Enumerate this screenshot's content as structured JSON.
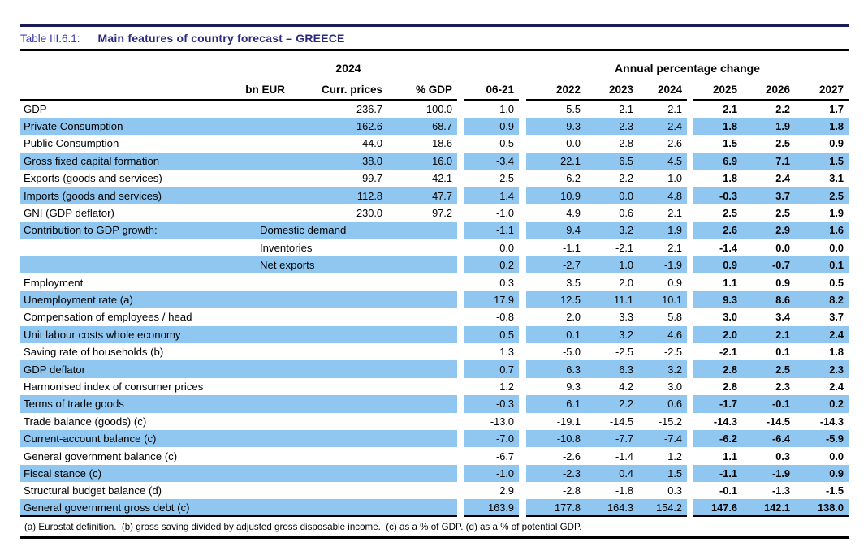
{
  "title": {
    "prefix": "Table III.6.1:",
    "main": "Main features of country forecast – GREECE"
  },
  "header": {
    "group_2024": "2024",
    "group_annual": "Annual percentage change",
    "columns": [
      "bn EUR",
      "Curr. prices",
      "% GDP",
      "06-21",
      "2022",
      "2023",
      "2024",
      "2025",
      "2026",
      "2027"
    ]
  },
  "table": {
    "rows": [
      {
        "label": "GDP",
        "sublabel": "",
        "shaded": false,
        "values": [
          "236.7",
          "100.0",
          "-1.0",
          "5.5",
          "2.1",
          "2.1",
          "2.1",
          "2.2",
          "1.7"
        ]
      },
      {
        "label": "Private Consumption",
        "sublabel": "",
        "shaded": true,
        "values": [
          "162.6",
          "68.7",
          "-0.9",
          "9.3",
          "2.3",
          "2.4",
          "1.8",
          "1.9",
          "1.8"
        ]
      },
      {
        "label": "Public Consumption",
        "sublabel": "",
        "shaded": false,
        "values": [
          "44.0",
          "18.6",
          "-0.5",
          "0.0",
          "2.8",
          "-2.6",
          "1.5",
          "2.5",
          "0.9"
        ]
      },
      {
        "label": "Gross fixed capital formation",
        "sublabel": "",
        "shaded": true,
        "values": [
          "38.0",
          "16.0",
          "-3.4",
          "22.1",
          "6.5",
          "4.5",
          "6.9",
          "7.1",
          "1.5"
        ]
      },
      {
        "label": "Exports (goods and services)",
        "sublabel": "",
        "shaded": false,
        "values": [
          "99.7",
          "42.1",
          "2.5",
          "6.2",
          "2.2",
          "1.0",
          "1.8",
          "2.4",
          "3.1"
        ]
      },
      {
        "label": "Imports (goods and services)",
        "sublabel": "",
        "shaded": true,
        "values": [
          "112.8",
          "47.7",
          "1.4",
          "10.9",
          "0.0",
          "4.8",
          "-0.3",
          "3.7",
          "2.5"
        ]
      },
      {
        "label": "GNI (GDP deflator)",
        "sublabel": "",
        "shaded": false,
        "values": [
          "230.0",
          "97.2",
          "-1.0",
          "4.9",
          "0.6",
          "2.1",
          "2.5",
          "2.5",
          "1.9"
        ]
      },
      {
        "label": "Contribution to GDP growth:",
        "sublabel": "Domestic demand",
        "shaded": true,
        "values": [
          "",
          "",
          "-1.1",
          "9.4",
          "3.2",
          "1.9",
          "2.6",
          "2.9",
          "1.6"
        ]
      },
      {
        "label": "",
        "sublabel": "Inventories",
        "shaded": false,
        "values": [
          "",
          "",
          "0.0",
          "-1.1",
          "-2.1",
          "2.1",
          "-1.4",
          "0.0",
          "0.0"
        ]
      },
      {
        "label": "",
        "sublabel": "Net exports",
        "shaded": true,
        "values": [
          "",
          "",
          "0.2",
          "-2.7",
          "1.0",
          "-1.9",
          "0.9",
          "-0.7",
          "0.1"
        ]
      },
      {
        "label": "Employment",
        "sublabel": "",
        "shaded": false,
        "values": [
          "",
          "",
          "0.3",
          "3.5",
          "2.0",
          "0.9",
          "1.1",
          "0.9",
          "0.5"
        ]
      },
      {
        "label": "Unemployment rate (a)",
        "sublabel": "",
        "shaded": true,
        "values": [
          "",
          "",
          "17.9",
          "12.5",
          "11.1",
          "10.1",
          "9.3",
          "8.6",
          "8.2"
        ]
      },
      {
        "label": "Compensation of employees / head",
        "sublabel": "",
        "shaded": false,
        "values": [
          "",
          "",
          "-0.8",
          "2.0",
          "3.3",
          "5.8",
          "3.0",
          "3.4",
          "3.7"
        ]
      },
      {
        "label": "Unit labour costs whole economy",
        "sublabel": "",
        "shaded": true,
        "values": [
          "",
          "",
          "0.5",
          "0.1",
          "3.2",
          "4.6",
          "2.0",
          "2.1",
          "2.4"
        ]
      },
      {
        "label": "Saving rate of households (b)",
        "sublabel": "",
        "shaded": false,
        "values": [
          "",
          "",
          "1.3",
          "-5.0",
          "-2.5",
          "-2.5",
          "-2.1",
          "0.1",
          "1.8"
        ]
      },
      {
        "label": "GDP deflator",
        "sublabel": "",
        "shaded": true,
        "values": [
          "",
          "",
          "0.7",
          "6.3",
          "6.3",
          "3.2",
          "2.8",
          "2.5",
          "2.3"
        ]
      },
      {
        "label": "Harmonised index of consumer prices",
        "sublabel": "",
        "shaded": false,
        "values": [
          "",
          "",
          "1.2",
          "9.3",
          "4.2",
          "3.0",
          "2.8",
          "2.3",
          "2.4"
        ]
      },
      {
        "label": "Terms of trade goods",
        "sublabel": "",
        "shaded": true,
        "values": [
          "",
          "",
          "-0.3",
          "6.1",
          "2.2",
          "0.6",
          "-1.7",
          "-0.1",
          "0.2"
        ]
      },
      {
        "label": "Trade balance (goods) (c)",
        "sublabel": "",
        "shaded": false,
        "values": [
          "",
          "",
          "-13.0",
          "-19.1",
          "-14.5",
          "-15.2",
          "-14.3",
          "-14.5",
          "-14.3"
        ]
      },
      {
        "label": "Current-account balance (c)",
        "sublabel": "",
        "shaded": true,
        "values": [
          "",
          "",
          "-7.0",
          "-10.8",
          "-7.7",
          "-7.4",
          "-6.2",
          "-6.4",
          "-5.9"
        ]
      },
      {
        "label": "General government balance (c)",
        "sublabel": "",
        "shaded": false,
        "values": [
          "",
          "",
          "-6.7",
          "-2.6",
          "-1.4",
          "1.2",
          "1.1",
          "0.3",
          "0.0"
        ]
      },
      {
        "label": "Fiscal stance (c)",
        "sublabel": "",
        "shaded": true,
        "values": [
          "",
          "",
          "-1.0",
          "-2.3",
          "0.4",
          "1.5",
          "-1.1",
          "-1.9",
          "0.9"
        ]
      },
      {
        "label": "Structural budget balance (d)",
        "sublabel": "",
        "shaded": false,
        "values": [
          "",
          "",
          "2.9",
          "-2.8",
          "-1.8",
          "0.3",
          "-0.1",
          "-1.3",
          "-1.5"
        ]
      },
      {
        "label": "General government gross debt (c)",
        "sublabel": "",
        "shaded": true,
        "values": [
          "",
          "",
          "163.9",
          "177.8",
          "164.3",
          "154.2",
          "147.6",
          "142.1",
          "138.0"
        ]
      }
    ]
  },
  "footnote": "(a) Eurostat definition.  (b) gross saving divided by adjusted gross disposable income.  (c) as a % of GDP. (d) as a % of potential GDP.",
  "colors": {
    "stripe_blue": "#8fc7f1",
    "title_prefix_blue": "#3a3aac",
    "title_main_navy": "#29297e",
    "top_rule_navy": "#1b1b55",
    "rule_black": "#000000"
  }
}
